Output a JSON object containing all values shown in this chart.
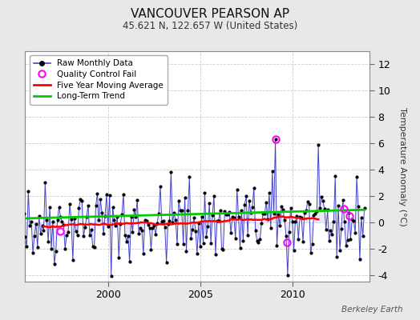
{
  "title": "VANCOUVER PEARSON AP",
  "subtitle": "45.621 N, 122.657 W (United States)",
  "ylabel": "Temperature Anomaly (°C)",
  "credit": "Berkeley Earth",
  "ylim": [
    -4.5,
    13
  ],
  "yticks": [
    -4,
    -2,
    0,
    2,
    4,
    6,
    8,
    10,
    12
  ],
  "xlim": [
    1995.5,
    2014.2
  ],
  "xticks": [
    2000,
    2005,
    2010
  ],
  "background_color": "#e8e8e8",
  "plot_bg_color": "#ffffff",
  "raw_color": "#4444cc",
  "raw_fill_color": "#aaaaee",
  "dot_color": "#000000",
  "ma_color": "#ff0000",
  "trend_color": "#00cc00",
  "qc_color": "#ff00ff",
  "legend_items": [
    "Raw Monthly Data",
    "Quality Control Fail",
    "Five Year Moving Average",
    "Long-Term Trend"
  ],
  "seed": 42,
  "n_years": 20,
  "start_year": 1994
}
